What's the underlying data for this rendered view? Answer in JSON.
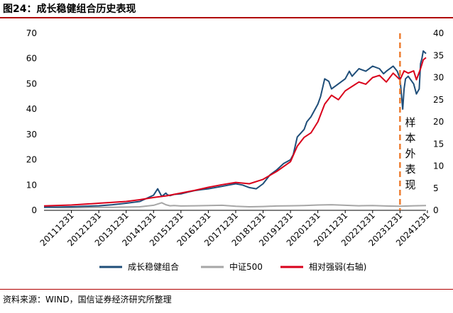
{
  "header": {
    "title": "图24：成长稳健组合历史表现"
  },
  "footer": {
    "source": "资料来源：WIND，国信证券经济研究所整理"
  },
  "chart_data": {
    "type": "line",
    "title": "",
    "annotation": "样本外表现",
    "divider_x": "2023-12-31",
    "x_ticks": [
      "20111231",
      "20121231",
      "20131231",
      "20141231",
      "20151231",
      "20161231",
      "20171231",
      "20181231",
      "20191231",
      "20201231",
      "20211231",
      "20221231",
      "20231231",
      "20241231"
    ],
    "y_left_ticks": [
      0,
      10,
      20,
      30,
      40,
      50,
      60,
      70
    ],
    "y_right_ticks": [
      0,
      5,
      10,
      15,
      20,
      25,
      30,
      35,
      40
    ],
    "ylim_left": [
      0,
      70
    ],
    "ylim_right": [
      0,
      40
    ],
    "x_range": [
      2011.0,
      2024.95
    ],
    "legend_position": "bottom",
    "grid": false,
    "series": [
      {
        "name": "成长稳健组合",
        "axis": "left",
        "color": "#1f4e79",
        "x": [
          2011.0,
          2011.5,
          2012.0,
          2012.5,
          2013.0,
          2013.5,
          2014.0,
          2014.5,
          2014.8,
          2015.0,
          2015.15,
          2015.3,
          2015.45,
          2015.5,
          2015.6,
          2015.75,
          2016.0,
          2016.25,
          2016.5,
          2016.75,
          2017.0,
          2017.25,
          2017.5,
          2017.75,
          2018.0,
          2018.25,
          2018.5,
          2018.75,
          2019.0,
          2019.25,
          2019.5,
          2019.75,
          2020.0,
          2020.1,
          2020.25,
          2020.5,
          2020.6,
          2020.75,
          2021.0,
          2021.1,
          2021.25,
          2021.4,
          2021.5,
          2021.75,
          2022.0,
          2022.15,
          2022.25,
          2022.5,
          2022.75,
          2023.0,
          2023.25,
          2023.4,
          2023.5,
          2023.75,
          2023.9,
          2024.0,
          2024.1,
          2024.15,
          2024.2,
          2024.3,
          2024.5,
          2024.6,
          2024.7,
          2024.75,
          2024.8,
          2024.85,
          2024.95
        ],
        "values": [
          1.2,
          1.3,
          1.4,
          1.6,
          1.8,
          2.2,
          2.8,
          3.5,
          5.0,
          6.0,
          8.5,
          5.5,
          6.8,
          6.2,
          5.8,
          6.3,
          6.5,
          7.2,
          7.8,
          8.2,
          8.5,
          9.0,
          9.5,
          10.0,
          10.5,
          10.0,
          9.0,
          8.5,
          10.5,
          14.0,
          16.0,
          18.5,
          20.0,
          22.0,
          29.0,
          32.0,
          35.0,
          37.0,
          42.0,
          45.0,
          52.0,
          51.0,
          48.0,
          50.0,
          52.0,
          55.0,
          53.0,
          56.0,
          55.0,
          57.0,
          56.0,
          54.0,
          55.0,
          57.0,
          55.0,
          52.0,
          40.0,
          48.0,
          52.0,
          53.0,
          50.0,
          46.0,
          48.0,
          58.0,
          60.0,
          63.0,
          62.0
        ]
      },
      {
        "name": "中证500",
        "axis": "left",
        "color": "#a6a6a6",
        "x": [
          2011.0,
          2011.5,
          2012.0,
          2012.5,
          2013.0,
          2013.5,
          2014.0,
          2014.5,
          2015.0,
          2015.3,
          2015.45,
          2015.6,
          2015.75,
          2016.0,
          2016.5,
          2017.0,
          2017.5,
          2018.0,
          2018.5,
          2019.0,
          2019.5,
          2020.0,
          2020.5,
          2021.0,
          2021.5,
          2022.0,
          2022.5,
          2023.0,
          2023.5,
          2024.0,
          2024.5,
          2024.95
        ],
        "values": [
          1.3,
          1.1,
          1.0,
          1.1,
          1.2,
          1.2,
          1.3,
          1.4,
          2.0,
          3.0,
          2.2,
          1.8,
          1.9,
          1.7,
          1.8,
          1.9,
          2.0,
          1.6,
          1.4,
          1.5,
          1.7,
          1.8,
          1.9,
          2.1,
          2.2,
          2.0,
          1.8,
          1.9,
          1.7,
          1.6,
          1.8,
          1.9
        ]
      },
      {
        "name": "相对强弱(右轴)",
        "axis": "right",
        "color": "#d9001b",
        "x": [
          2011.0,
          2011.5,
          2012.0,
          2012.5,
          2013.0,
          2013.5,
          2014.0,
          2014.5,
          2015.0,
          2015.5,
          2016.0,
          2016.5,
          2017.0,
          2017.5,
          2018.0,
          2018.5,
          2019.0,
          2019.5,
          2020.0,
          2020.25,
          2020.5,
          2020.75,
          2021.0,
          2021.25,
          2021.5,
          2021.75,
          2022.0,
          2022.25,
          2022.5,
          2022.75,
          2023.0,
          2023.25,
          2023.5,
          2023.75,
          2024.0,
          2024.15,
          2024.3,
          2024.5,
          2024.6,
          2024.75,
          2024.85,
          2024.95
        ],
        "values": [
          1.0,
          1.1,
          1.2,
          1.4,
          1.6,
          1.8,
          2.0,
          2.4,
          2.9,
          3.3,
          3.9,
          4.5,
          5.2,
          5.8,
          6.3,
          6.0,
          7.0,
          8.8,
          11.0,
          14.5,
          16.5,
          17.5,
          20.0,
          24.0,
          26.0,
          25.0,
          27.0,
          28.0,
          29.0,
          28.5,
          30.0,
          30.5,
          29.0,
          31.0,
          29.5,
          31.5,
          31.0,
          31.5,
          29.5,
          32.0,
          34.0,
          34.5
        ]
      }
    ]
  }
}
